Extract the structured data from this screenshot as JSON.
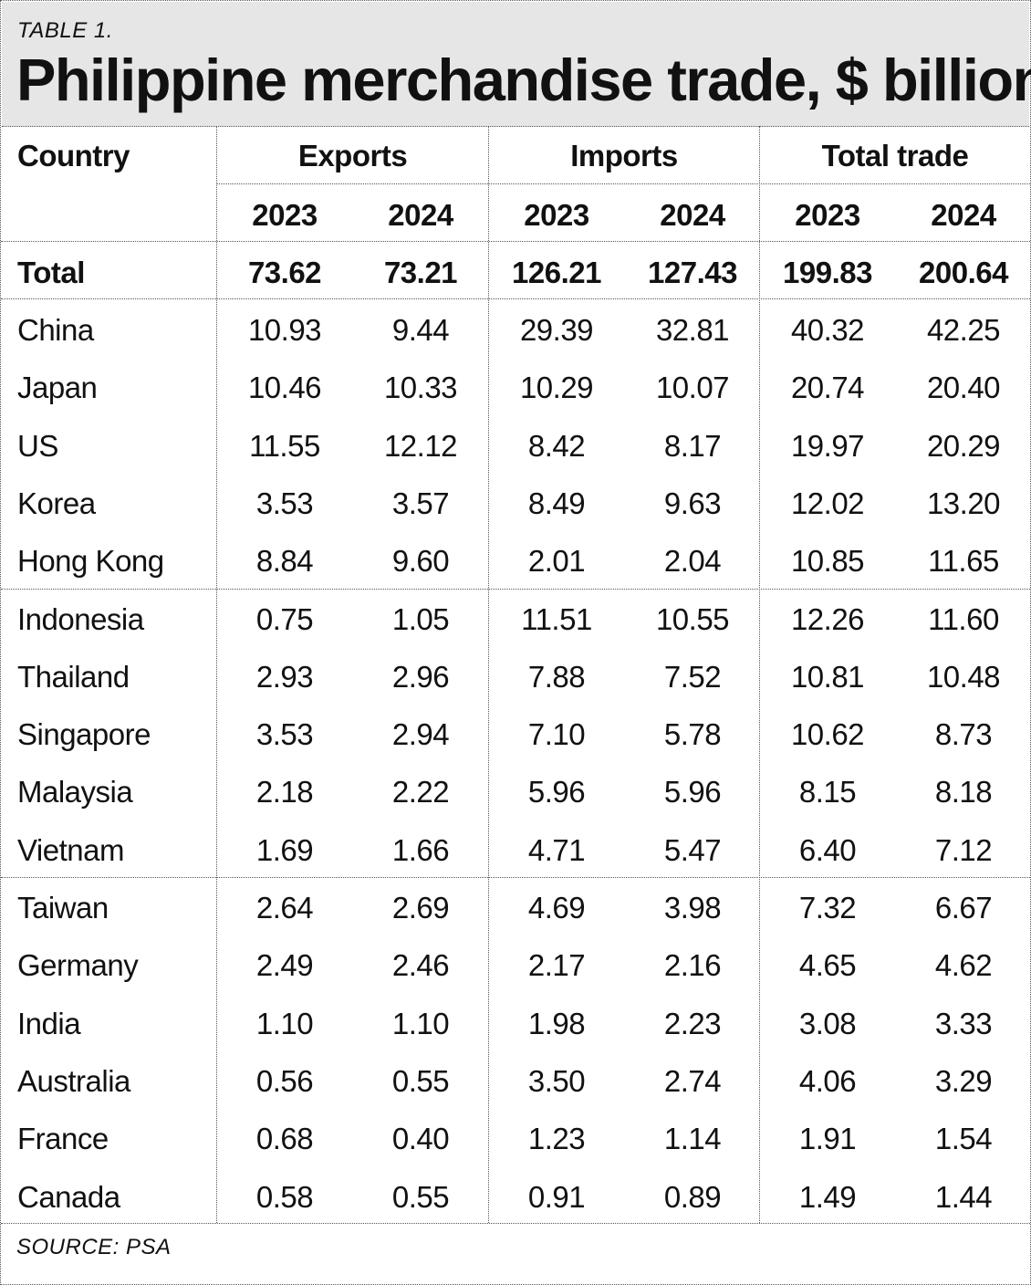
{
  "table_label": "TABLE 1.",
  "title": "Philippine merchandise trade, $ billion",
  "source": "SOURCE: PSA",
  "chart_data": {
    "type": "table",
    "title": "Philippine merchandise trade, $ billion",
    "columns": {
      "country": "Country",
      "groups": [
        {
          "name": "Exports",
          "years": [
            "2023",
            "2024"
          ]
        },
        {
          "name": "Imports",
          "years": [
            "2023",
            "2024"
          ]
        },
        {
          "name": "Total trade",
          "years": [
            "2023",
            "2024"
          ]
        }
      ]
    },
    "total": {
      "label": "Total",
      "values": [
        "73.62",
        "73.21",
        "126.21",
        "127.43",
        "199.83",
        "200.64"
      ]
    },
    "rows": [
      {
        "country": "China",
        "values": [
          "10.93",
          "9.44",
          "29.39",
          "32.81",
          "40.32",
          "42.25"
        ]
      },
      {
        "country": "Japan",
        "values": [
          "10.46",
          "10.33",
          "10.29",
          "10.07",
          "20.74",
          "20.40"
        ]
      },
      {
        "country": "US",
        "values": [
          "11.55",
          "12.12",
          "8.42",
          "8.17",
          "19.97",
          "20.29"
        ]
      },
      {
        "country": "Korea",
        "values": [
          "3.53",
          "3.57",
          "8.49",
          "9.63",
          "12.02",
          "13.20"
        ]
      },
      {
        "country": "Hong Kong",
        "values": [
          "8.84",
          "9.60",
          "2.01",
          "2.04",
          "10.85",
          "11.65"
        ]
      },
      {
        "country": "Indonesia",
        "values": [
          "0.75",
          "1.05",
          "11.51",
          "10.55",
          "12.26",
          "11.60"
        ]
      },
      {
        "country": "Thailand",
        "values": [
          "2.93",
          "2.96",
          "7.88",
          "7.52",
          "10.81",
          "10.48"
        ]
      },
      {
        "country": "Singapore",
        "values": [
          "3.53",
          "2.94",
          "7.10",
          "5.78",
          "10.62",
          "8.73"
        ]
      },
      {
        "country": "Malaysia",
        "values": [
          "2.18",
          "2.22",
          "5.96",
          "5.96",
          "8.15",
          "8.18"
        ]
      },
      {
        "country": "Vietnam",
        "values": [
          "1.69",
          "1.66",
          "4.71",
          "5.47",
          "6.40",
          "7.12"
        ]
      },
      {
        "country": "Taiwan",
        "values": [
          "2.64",
          "2.69",
          "4.69",
          "3.98",
          "7.32",
          "6.67"
        ]
      },
      {
        "country": "Germany",
        "values": [
          "2.49",
          "2.46",
          "2.17",
          "2.16",
          "4.65",
          "4.62"
        ]
      },
      {
        "country": "India",
        "values": [
          "1.10",
          "1.10",
          "1.98",
          "2.23",
          "3.08",
          "3.33"
        ]
      },
      {
        "country": "Australia",
        "values": [
          "0.56",
          "0.55",
          "3.50",
          "2.74",
          "4.06",
          "3.29"
        ]
      },
      {
        "country": "France",
        "values": [
          "0.68",
          "0.40",
          "1.23",
          "1.14",
          "1.91",
          "1.54"
        ]
      },
      {
        "country": "Canada",
        "values": [
          "0.58",
          "0.55",
          "0.91",
          "0.89",
          "1.49",
          "1.44"
        ]
      }
    ]
  }
}
